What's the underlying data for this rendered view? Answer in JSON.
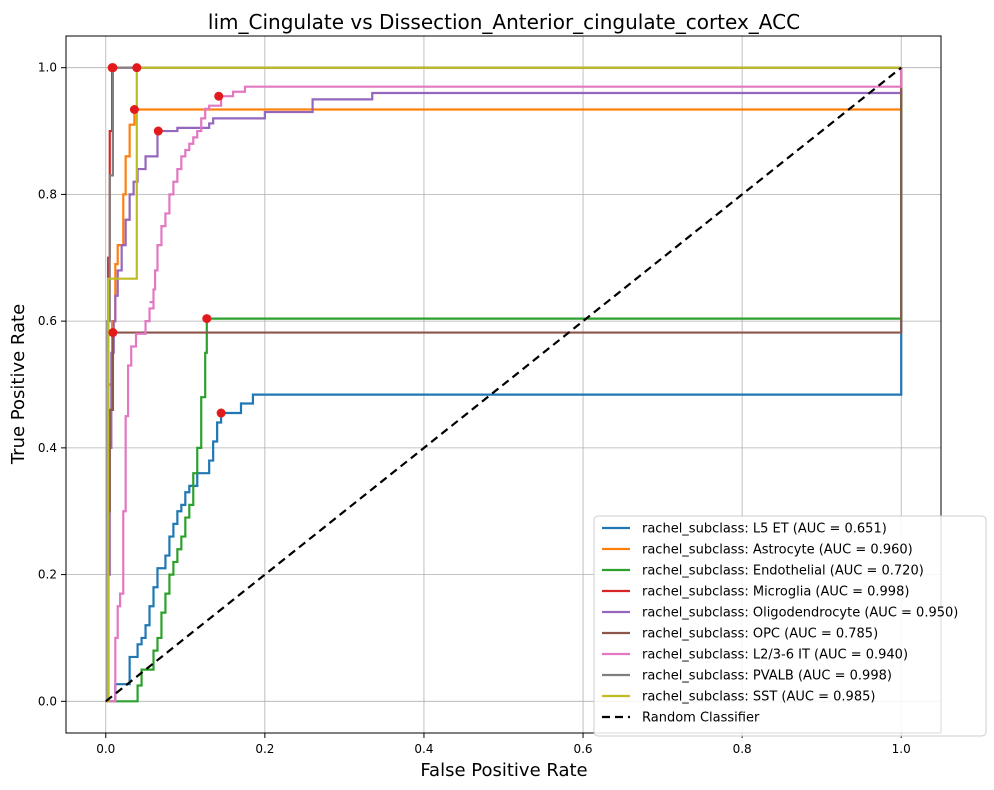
{
  "chart_data": {
    "type": "line",
    "title": "lim_Cingulate vs Dissection_Anterior_cingulate_cortex_ACC",
    "xlabel": "False Positive Rate",
    "ylabel": "True Positive Rate",
    "xlim": [
      -0.05,
      1.05
    ],
    "ylim": [
      -0.05,
      1.05
    ],
    "xticks": [
      0.0,
      0.2,
      0.4,
      0.6,
      0.8,
      1.0
    ],
    "yticks": [
      0.0,
      0.2,
      0.4,
      0.6,
      0.8,
      1.0
    ],
    "grid": true,
    "legend_position": "lower-right",
    "marker_color": "#e31a1c",
    "series": [
      {
        "name": "rachel_subclass: L5 ET (AUC = 0.651)",
        "color": "#1f77b4",
        "points": [
          [
            0,
            0
          ],
          [
            0.012,
            0
          ],
          [
            0.012,
            0.027
          ],
          [
            0.03,
            0.027
          ],
          [
            0.03,
            0.07
          ],
          [
            0.04,
            0.07
          ],
          [
            0.04,
            0.09
          ],
          [
            0.045,
            0.09
          ],
          [
            0.045,
            0.1
          ],
          [
            0.05,
            0.1
          ],
          [
            0.05,
            0.12
          ],
          [
            0.055,
            0.12
          ],
          [
            0.055,
            0.15
          ],
          [
            0.06,
            0.15
          ],
          [
            0.06,
            0.18
          ],
          [
            0.065,
            0.18
          ],
          [
            0.065,
            0.21
          ],
          [
            0.075,
            0.21
          ],
          [
            0.075,
            0.23
          ],
          [
            0.08,
            0.23
          ],
          [
            0.08,
            0.26
          ],
          [
            0.085,
            0.26
          ],
          [
            0.085,
            0.28
          ],
          [
            0.09,
            0.28
          ],
          [
            0.09,
            0.3
          ],
          [
            0.095,
            0.3
          ],
          [
            0.095,
            0.31
          ],
          [
            0.1,
            0.31
          ],
          [
            0.1,
            0.33
          ],
          [
            0.105,
            0.33
          ],
          [
            0.105,
            0.34
          ],
          [
            0.115,
            0.34
          ],
          [
            0.115,
            0.36
          ],
          [
            0.13,
            0.36
          ],
          [
            0.13,
            0.38
          ],
          [
            0.135,
            0.38
          ],
          [
            0.135,
            0.41
          ],
          [
            0.14,
            0.41
          ],
          [
            0.14,
            0.44
          ],
          [
            0.145,
            0.44
          ],
          [
            0.145,
            0.455
          ],
          [
            0.17,
            0.455
          ],
          [
            0.17,
            0.47
          ],
          [
            0.185,
            0.47
          ],
          [
            0.185,
            0.484
          ],
          [
            1.0,
            0.484
          ],
          [
            1.0,
            1.0
          ]
        ],
        "marker": [
          0.145,
          0.455
        ]
      },
      {
        "name": "rachel_subclass: Astrocyte (AUC = 0.960)",
        "color": "#ff7f0e",
        "points": [
          [
            0,
            0
          ],
          [
            0.003,
            0
          ],
          [
            0.003,
            0.5
          ],
          [
            0.008,
            0.5
          ],
          [
            0.008,
            0.6
          ],
          [
            0.012,
            0.6
          ],
          [
            0.012,
            0.69
          ],
          [
            0.015,
            0.69
          ],
          [
            0.015,
            0.72
          ],
          [
            0.022,
            0.72
          ],
          [
            0.022,
            0.8
          ],
          [
            0.025,
            0.8
          ],
          [
            0.025,
            0.86
          ],
          [
            0.03,
            0.86
          ],
          [
            0.03,
            0.91
          ],
          [
            0.036,
            0.91
          ],
          [
            0.036,
            0.934
          ],
          [
            1.0,
            0.934
          ],
          [
            1.0,
            1.0
          ]
        ],
        "marker": [
          0.036,
          0.934
        ]
      },
      {
        "name": "rachel_subclass: Endothelial (AUC = 0.720)",
        "color": "#2ca02c",
        "points": [
          [
            0,
            0
          ],
          [
            0.04,
            0
          ],
          [
            0.04,
            0.025
          ],
          [
            0.045,
            0.025
          ],
          [
            0.045,
            0.05
          ],
          [
            0.06,
            0.05
          ],
          [
            0.06,
            0.08
          ],
          [
            0.065,
            0.08
          ],
          [
            0.065,
            0.1
          ],
          [
            0.07,
            0.1
          ],
          [
            0.07,
            0.14
          ],
          [
            0.075,
            0.14
          ],
          [
            0.075,
            0.17
          ],
          [
            0.08,
            0.17
          ],
          [
            0.08,
            0.2
          ],
          [
            0.085,
            0.2
          ],
          [
            0.085,
            0.22
          ],
          [
            0.09,
            0.22
          ],
          [
            0.09,
            0.24
          ],
          [
            0.095,
            0.24
          ],
          [
            0.095,
            0.26
          ],
          [
            0.1,
            0.26
          ],
          [
            0.1,
            0.29
          ],
          [
            0.105,
            0.29
          ],
          [
            0.105,
            0.31
          ],
          [
            0.11,
            0.31
          ],
          [
            0.11,
            0.36
          ],
          [
            0.115,
            0.36
          ],
          [
            0.115,
            0.4
          ],
          [
            0.12,
            0.4
          ],
          [
            0.12,
            0.44
          ],
          [
            0.12,
            0.48
          ],
          [
            0.125,
            0.48
          ],
          [
            0.125,
            0.5
          ],
          [
            0.125,
            0.55
          ],
          [
            0.127,
            0.55
          ],
          [
            0.127,
            0.58
          ],
          [
            0.127,
            0.604
          ],
          [
            1.0,
            0.604
          ],
          [
            1.0,
            1.0
          ]
        ],
        "marker": [
          0.127,
          0.604
        ]
      },
      {
        "name": "rachel_subclass: Microglia (AUC = 0.998)",
        "color": "#d62728",
        "points": [
          [
            0,
            0
          ],
          [
            0.003,
            0
          ],
          [
            0.003,
            0.7
          ],
          [
            0.005,
            0.7
          ],
          [
            0.005,
            0.9
          ],
          [
            0.008,
            0.9
          ],
          [
            0.008,
            1.0
          ],
          [
            1.0,
            1.0
          ]
        ],
        "marker": [
          0.008,
          1.0
        ]
      },
      {
        "name": "rachel_subclass: Oligodendrocyte (AUC = 0.950)",
        "color": "#9467bd",
        "points": [
          [
            0,
            0
          ],
          [
            0.003,
            0
          ],
          [
            0.003,
            0.2
          ],
          [
            0.005,
            0.2
          ],
          [
            0.005,
            0.4
          ],
          [
            0.007,
            0.4
          ],
          [
            0.007,
            0.55
          ],
          [
            0.01,
            0.55
          ],
          [
            0.01,
            0.6
          ],
          [
            0.012,
            0.6
          ],
          [
            0.012,
            0.64
          ],
          [
            0.015,
            0.64
          ],
          [
            0.015,
            0.68
          ],
          [
            0.02,
            0.68
          ],
          [
            0.02,
            0.72
          ],
          [
            0.025,
            0.72
          ],
          [
            0.025,
            0.76
          ],
          [
            0.03,
            0.76
          ],
          [
            0.03,
            0.8
          ],
          [
            0.035,
            0.8
          ],
          [
            0.035,
            0.82
          ],
          [
            0.04,
            0.82
          ],
          [
            0.04,
            0.84
          ],
          [
            0.05,
            0.84
          ],
          [
            0.05,
            0.86
          ],
          [
            0.065,
            0.86
          ],
          [
            0.065,
            0.9
          ],
          [
            0.09,
            0.9
          ],
          [
            0.09,
            0.905
          ],
          [
            0.13,
            0.905
          ],
          [
            0.13,
            0.912
          ],
          [
            0.135,
            0.912
          ],
          [
            0.135,
            0.92
          ],
          [
            0.2,
            0.92
          ],
          [
            0.2,
            0.93
          ],
          [
            0.26,
            0.93
          ],
          [
            0.26,
            0.95
          ],
          [
            0.335,
            0.95
          ],
          [
            0.335,
            0.96
          ],
          [
            1.0,
            0.96
          ],
          [
            1.0,
            1.0
          ]
        ],
        "marker": [
          0.066,
          0.9
        ]
      },
      {
        "name": "rachel_subclass: OPC (AUC = 0.785)",
        "color": "#8c564b",
        "points": [
          [
            0,
            0
          ],
          [
            0.003,
            0
          ],
          [
            0.003,
            0.3
          ],
          [
            0.005,
            0.3
          ],
          [
            0.005,
            0.46
          ],
          [
            0.009,
            0.46
          ],
          [
            0.009,
            0.582
          ],
          [
            1.0,
            0.582
          ],
          [
            1.0,
            1.0
          ]
        ],
        "marker": [
          0.009,
          0.582
        ]
      },
      {
        "name": "rachel_subclass: L2/3-6 IT (AUC = 0.940)",
        "color": "#e377c2",
        "points": [
          [
            0,
            0
          ],
          [
            0.012,
            0
          ],
          [
            0.012,
            0.1
          ],
          [
            0.015,
            0.1
          ],
          [
            0.015,
            0.15
          ],
          [
            0.018,
            0.15
          ],
          [
            0.018,
            0.17
          ],
          [
            0.022,
            0.17
          ],
          [
            0.022,
            0.3
          ],
          [
            0.025,
            0.3
          ],
          [
            0.025,
            0.45
          ],
          [
            0.028,
            0.45
          ],
          [
            0.028,
            0.53
          ],
          [
            0.032,
            0.53
          ],
          [
            0.032,
            0.56
          ],
          [
            0.038,
            0.56
          ],
          [
            0.038,
            0.58
          ],
          [
            0.05,
            0.58
          ],
          [
            0.05,
            0.6
          ],
          [
            0.055,
            0.6
          ],
          [
            0.055,
            0.62
          ],
          [
            0.06,
            0.62
          ],
          [
            0.06,
            0.63
          ],
          [
            0.055,
            0.63
          ],
          [
            0.06,
            0.63
          ],
          [
            0.06,
            0.65
          ],
          [
            0.062,
            0.65
          ],
          [
            0.062,
            0.68
          ],
          [
            0.065,
            0.68
          ],
          [
            0.065,
            0.72
          ],
          [
            0.07,
            0.72
          ],
          [
            0.07,
            0.75
          ],
          [
            0.075,
            0.75
          ],
          [
            0.075,
            0.77
          ],
          [
            0.08,
            0.77
          ],
          [
            0.08,
            0.8
          ],
          [
            0.085,
            0.8
          ],
          [
            0.085,
            0.82
          ],
          [
            0.09,
            0.82
          ],
          [
            0.09,
            0.84
          ],
          [
            0.095,
            0.84
          ],
          [
            0.095,
            0.86
          ],
          [
            0.1,
            0.86
          ],
          [
            0.1,
            0.87
          ],
          [
            0.105,
            0.87
          ],
          [
            0.105,
            0.88
          ],
          [
            0.11,
            0.88
          ],
          [
            0.11,
            0.89
          ],
          [
            0.115,
            0.89
          ],
          [
            0.115,
            0.9
          ],
          [
            0.12,
            0.9
          ],
          [
            0.12,
            0.92
          ],
          [
            0.125,
            0.92
          ],
          [
            0.125,
            0.935
          ],
          [
            0.13,
            0.935
          ],
          [
            0.13,
            0.94
          ],
          [
            0.145,
            0.94
          ],
          [
            0.145,
            0.955
          ],
          [
            0.16,
            0.955
          ],
          [
            0.16,
            0.962
          ],
          [
            0.175,
            0.962
          ],
          [
            0.175,
            0.97
          ],
          [
            1.0,
            0.97
          ],
          [
            1.0,
            1.0
          ]
        ],
        "marker": [
          0.142,
          0.955
        ]
      },
      {
        "name": "rachel_subclass: PVALB (AUC = 0.998)",
        "color": "#7f7f7f",
        "points": [
          [
            0,
            0
          ],
          [
            0.002,
            0
          ],
          [
            0.002,
            0.6
          ],
          [
            0.005,
            0.6
          ],
          [
            0.005,
            0.83
          ],
          [
            0.009,
            0.83
          ],
          [
            0.009,
            1.0
          ],
          [
            1.0,
            1.0
          ]
        ],
        "marker": [
          0.009,
          1.0
        ]
      },
      {
        "name": "rachel_subclass: SST (AUC = 0.985)",
        "color": "#bcbd22",
        "points": [
          [
            0,
            0
          ],
          [
            0.003,
            0
          ],
          [
            0.003,
            0.667
          ],
          [
            0.039,
            0.667
          ],
          [
            0.039,
            1.0
          ],
          [
            1.0,
            1.0
          ]
        ],
        "marker": [
          0.039,
          1.0
        ]
      },
      {
        "name": "Random Classifier",
        "color": "#000000",
        "dashed": true,
        "points": [
          [
            0,
            0
          ],
          [
            1,
            1
          ]
        ]
      }
    ]
  }
}
